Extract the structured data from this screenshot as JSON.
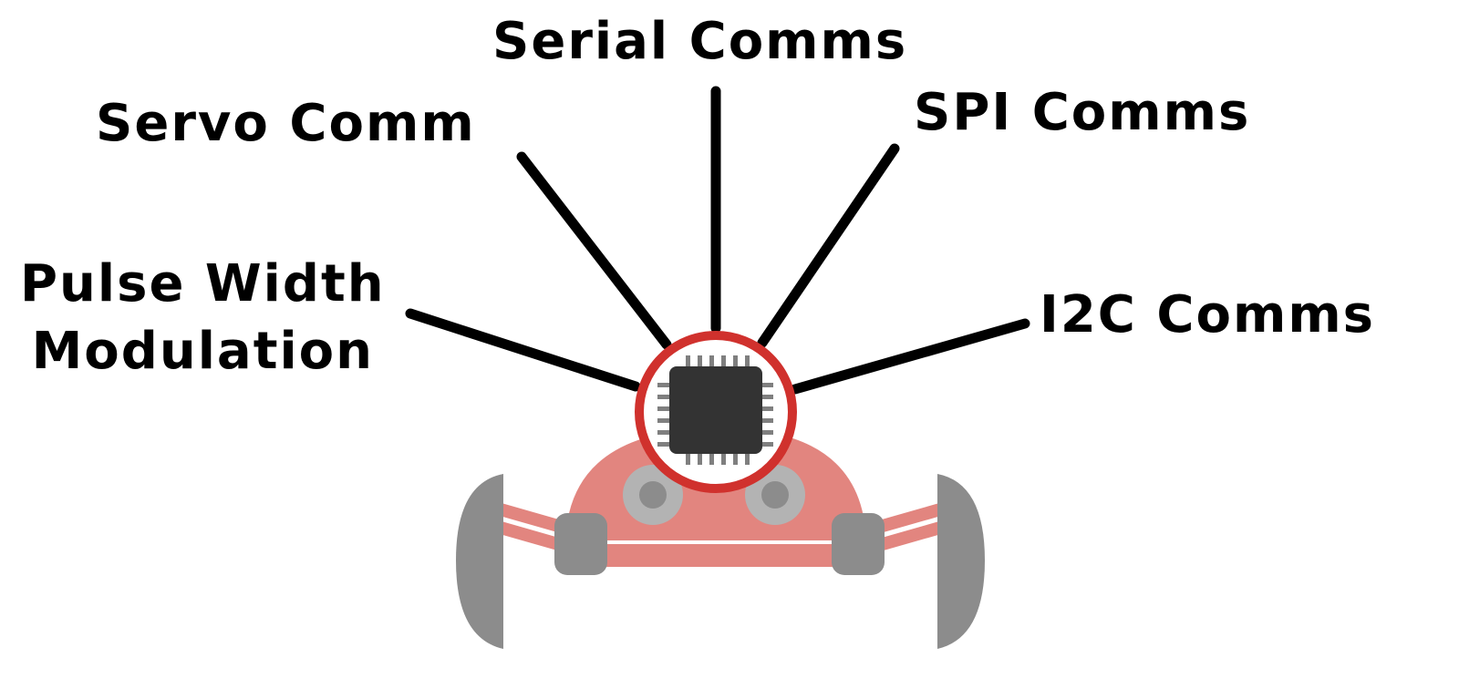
{
  "labels": {
    "serial": "Serial Comms",
    "servo": "Servo Comm",
    "spi": "SPI Comms",
    "pwm_line1": "Pulse Width",
    "pwm_line2": "Modulation",
    "i2c": "I2C Comms"
  },
  "colors": {
    "text": "#000000",
    "line": "#000000",
    "ring": "#d0312d",
    "chip": "#333333",
    "pins": "#7f7f7f",
    "robot_body": "#e2857f",
    "robot_light": "#f2a4a0",
    "wheel": "#8c8c8c",
    "sensor_outer": "#b3b3b3",
    "sensor_inner": "#8c8c8c"
  },
  "icons": {
    "chip": "microcontroller-chip-icon",
    "robot": "robot-car-icon"
  }
}
